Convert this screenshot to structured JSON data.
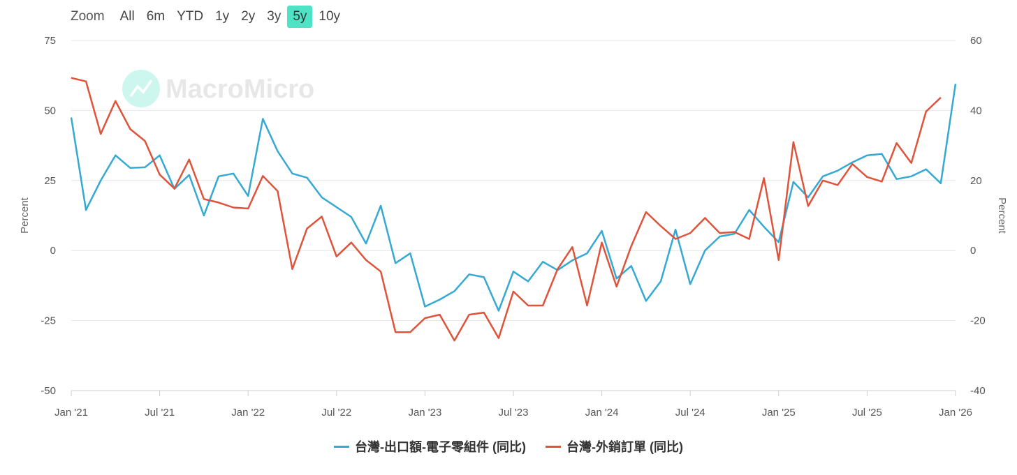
{
  "zoom": {
    "label": "Zoom",
    "buttons": [
      "All",
      "6m",
      "YTD",
      "1y",
      "2y",
      "3y",
      "5y",
      "10y"
    ],
    "active": "5y"
  },
  "watermark": "MacroMicro",
  "colors": {
    "series1": "#35a9d3",
    "series2": "#e0533b",
    "grid": "#e6e6e6",
    "zoom_active": "#4fe3c6"
  },
  "chart_data": {
    "type": "line",
    "y_left": {
      "label": "Percent",
      "range": [
        -50,
        75
      ],
      "ticks": [
        "75",
        "50",
        "25",
        "0",
        "-25",
        "-50"
      ]
    },
    "y_right": {
      "label": "Percent",
      "range": [
        -40,
        60
      ],
      "ticks": [
        "60",
        "40",
        "20",
        "0",
        "-20",
        "-40"
      ]
    },
    "x_ticks": [
      "Jan '21",
      "Jul '21",
      "Jan '22",
      "Jul '22",
      "Jan '23",
      "Jul '23",
      "Jan '24",
      "Jul '24",
      "Jan '25",
      "Jul '25",
      "Jan '26"
    ],
    "x_range": [
      "2021-01",
      "2026-01"
    ],
    "grid": true,
    "legend_position": "bottom",
    "series": [
      {
        "name": "台灣-出口額-電子零組件 (同比)",
        "axis": "left",
        "start": "2021-01",
        "values": [
          47.5,
          14.5,
          25,
          34,
          29.5,
          29.7,
          34,
          22,
          27,
          12.5,
          26.5,
          27.5,
          19.5,
          47,
          35.5,
          27.5,
          26,
          19,
          15.5,
          12,
          2.5,
          16,
          -4.5,
          -1,
          -20,
          -17.5,
          -14.5,
          -8.5,
          -9.5,
          -21.5,
          -7.5,
          -11,
          -4,
          -7,
          -3.5,
          -1,
          7,
          -10,
          -5.5,
          -18,
          -11,
          7.5,
          -12,
          0,
          5,
          6,
          14.5,
          8.5,
          3,
          24.5,
          19,
          26.5,
          28.5,
          31.5,
          34,
          34.5,
          25.5,
          26.5,
          29,
          24,
          59.5
        ]
      },
      {
        "name": "台灣-外銷訂單 (同比)",
        "axis": "right",
        "start": "2021-01",
        "values": [
          49.3,
          48.3,
          33.3,
          42.7,
          34.7,
          31.3,
          21.7,
          17.7,
          26,
          14.7,
          13.7,
          12.3,
          12,
          21.3,
          17,
          -5.3,
          6.3,
          9.7,
          -1.7,
          2.3,
          -2.7,
          -6,
          -23.3,
          -23.3,
          -19.3,
          -18.3,
          -25.7,
          -18.3,
          -17.7,
          -25,
          -11.7,
          -15.7,
          -15.7,
          -5.3,
          1,
          -15.7,
          2.3,
          -10.3,
          1.3,
          11,
          7,
          3.3,
          5,
          9.3,
          5,
          5.3,
          3.3,
          20.7,
          -2.7,
          31,
          12.7,
          20,
          18.7,
          24.7,
          21,
          19.7,
          30.7,
          25,
          39.7,
          43.7
        ]
      }
    ]
  }
}
